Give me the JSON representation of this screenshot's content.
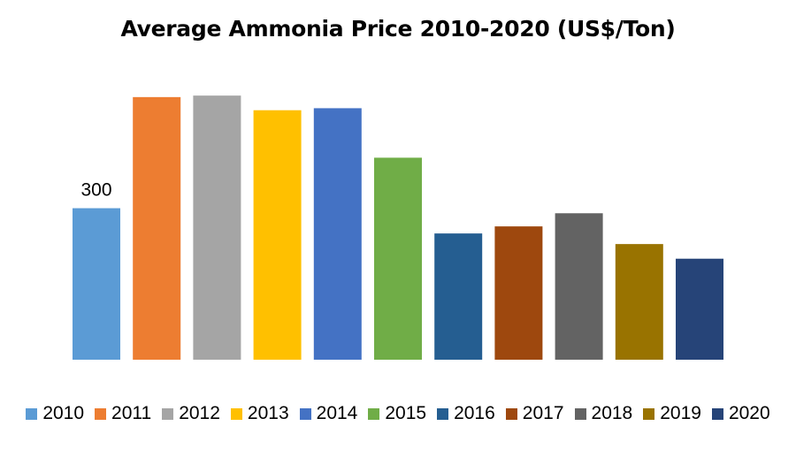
{
  "chart_data": {
    "type": "bar",
    "title": "Average Ammonia Price 2010-2020 (US$/Ton)",
    "xlabel": "",
    "ylabel": "",
    "categories": [
      "2010",
      "2011",
      "2012",
      "2013",
      "2014",
      "2015",
      "2016",
      "2017",
      "2018",
      "2019",
      "2020"
    ],
    "values": [
      300,
      520,
      523,
      494,
      498,
      400,
      250,
      264,
      290,
      229,
      200
    ],
    "data_labels": [
      {
        "category": "2010",
        "text": "300"
      }
    ],
    "colors": [
      "#5B9BD5",
      "#ED7D31",
      "#A5A5A5",
      "#FFC000",
      "#4472C4",
      "#70AD47",
      "#255E91",
      "#9E480E",
      "#636363",
      "#997300",
      "#264478"
    ],
    "ylim": [
      0,
      560
    ],
    "grid": false,
    "legend": "bottom"
  }
}
